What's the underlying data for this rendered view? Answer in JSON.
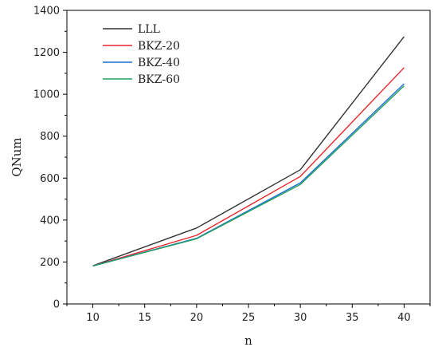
{
  "chart_data": {
    "type": "line",
    "x": [
      10,
      20,
      30,
      40
    ],
    "series": [
      {
        "name": "LLL",
        "color": "#333333",
        "values": [
          182,
          362,
          640,
          1275
        ]
      },
      {
        "name": "BKZ-20",
        "color": "#e8252b",
        "values": [
          181,
          327,
          608,
          1127
        ]
      },
      {
        "name": "BKZ-40",
        "color": "#1f6fd1",
        "values": [
          181,
          313,
          577,
          1050
        ]
      },
      {
        "name": "BKZ-60",
        "color": "#20a060",
        "values": [
          181,
          311,
          570,
          1040
        ]
      }
    ],
    "xlabel": "n",
    "ylabel": "QNum",
    "xlim": [
      7.5,
      42.5
    ],
    "ylim": [
      0,
      1400
    ],
    "xticks": [
      10,
      15,
      20,
      25,
      30,
      35,
      40
    ],
    "yticks": [
      0,
      200,
      400,
      600,
      800,
      1000,
      1200,
      1400
    ],
    "grid": false,
    "legend_position": "top-left"
  }
}
